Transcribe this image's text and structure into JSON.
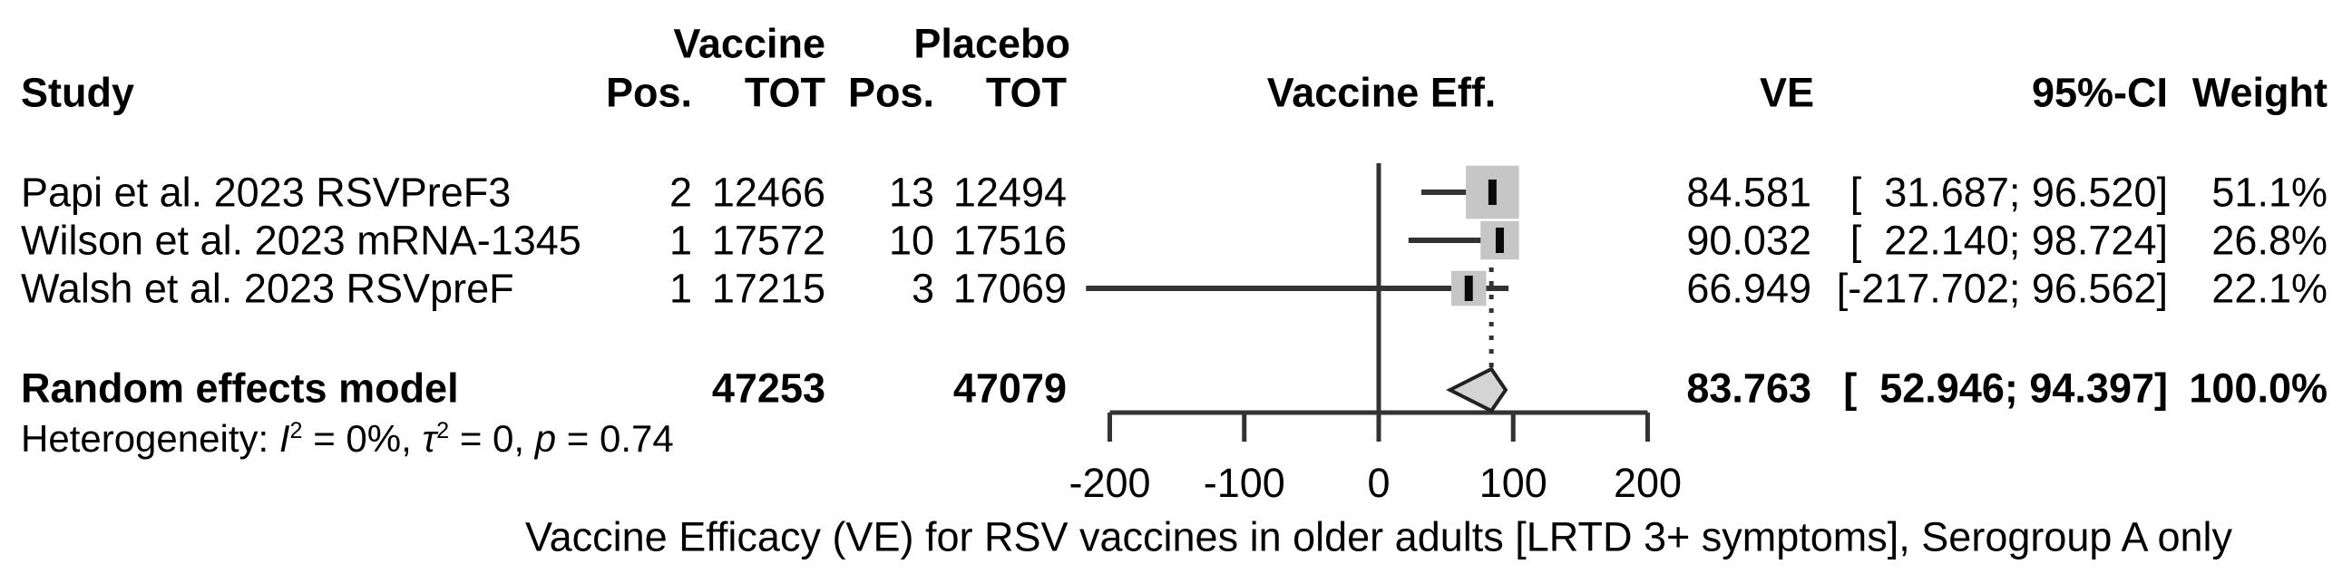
{
  "header": {
    "group_vaccine": "Vaccine",
    "group_placebo": "Placebo",
    "study": "Study",
    "vac_pos": "Pos.",
    "vac_tot": "TOT",
    "pla_pos": "Pos.",
    "pla_tot": "TOT",
    "effect": "Vaccine Eff.",
    "ve": "VE",
    "ci": "95%-CI",
    "weight": "Weight"
  },
  "rows": [
    {
      "study": "Papi et al. 2023 RSVPreF3",
      "vac_pos": "2",
      "vac_tot": "12466",
      "pla_pos": "13",
      "pla_tot": "12494",
      "ve": "84.581",
      "ci": "[  31.687; 96.520]",
      "weight": "51.1%"
    },
    {
      "study": "Wilson et al. 2023 mRNA-1345",
      "vac_pos": "1",
      "vac_tot": "17572",
      "pla_pos": "10",
      "pla_tot": "17516",
      "ve": "90.032",
      "ci": "[  22.140; 98.724]",
      "weight": "26.8%"
    },
    {
      "study": "Walsh et al. 2023 RSVpreF",
      "vac_pos": "1",
      "vac_tot": "17215",
      "pla_pos": "3",
      "pla_tot": "17069",
      "ve": "66.949",
      "ci": "[-217.702; 96.562]",
      "weight": "22.1%"
    }
  ],
  "summary_row": {
    "label": "Random effects model",
    "vac_tot": "47253",
    "pla_tot": "47079",
    "ve": "83.763",
    "ci": "[  52.946; 94.397]",
    "weight": "100.0%"
  },
  "heterogeneity": {
    "prefix": "Heterogeneity: ",
    "i": "I",
    "i_sup": "2",
    "seg1": " = 0%, ",
    "tau": "τ",
    "tau_sup": "2",
    "seg2": " = 0, ",
    "p": "p",
    "seg3": " = 0.74"
  },
  "caption": "Vaccine Efficacy (VE) for RSV vaccines in older adults [LRTD 3+ symptoms], Serogroup A only",
  "chart_data": {
    "type": "forest",
    "title": "",
    "xlabel": "Vaccine Efficacy (VE) for RSV vaccines in older adults [LRTD 3+ symptoms], Serogroup A only",
    "xlim": [
      -200,
      200
    ],
    "x_ticks": [
      -200,
      -100,
      0,
      100,
      200
    ],
    "reference_line": 0,
    "studies": [
      {
        "name": "Papi et al. 2023 RSVPreF3",
        "vaccine_pos": 2,
        "vaccine_tot": 12466,
        "placebo_pos": 13,
        "placebo_tot": 12494,
        "ve": 84.581,
        "ci_low": 31.687,
        "ci_high": 96.52,
        "weight_pct": 51.1
      },
      {
        "name": "Wilson et al. 2023 mRNA-1345",
        "vaccine_pos": 1,
        "vaccine_tot": 17572,
        "placebo_pos": 10,
        "placebo_tot": 17516,
        "ve": 90.032,
        "ci_low": 22.14,
        "ci_high": 98.724,
        "weight_pct": 26.8
      },
      {
        "name": "Walsh et al. 2023 RSVpreF",
        "vaccine_pos": 1,
        "vaccine_tot": 17215,
        "placebo_pos": 3,
        "placebo_tot": 17069,
        "ve": 66.949,
        "ci_low": -217.702,
        "ci_high": 96.562,
        "weight_pct": 22.1
      }
    ],
    "summary": {
      "name": "Random effects model",
      "vaccine_tot": 47253,
      "placebo_tot": 47079,
      "ve": 83.763,
      "ci_low": 52.946,
      "ci_high": 94.397,
      "weight_pct": 100.0
    },
    "heterogeneity_stats": {
      "I2": "0%",
      "tau2": "0",
      "p": "0.74"
    },
    "legend_position": "none",
    "grid": false,
    "colors": {
      "square_fill": "#c6c6c6",
      "line": "#333333",
      "point_tick": "#0a0a0a",
      "diamond_fill": "#d4d4d4",
      "diamond_stroke": "#222222",
      "text": "#000000"
    }
  }
}
